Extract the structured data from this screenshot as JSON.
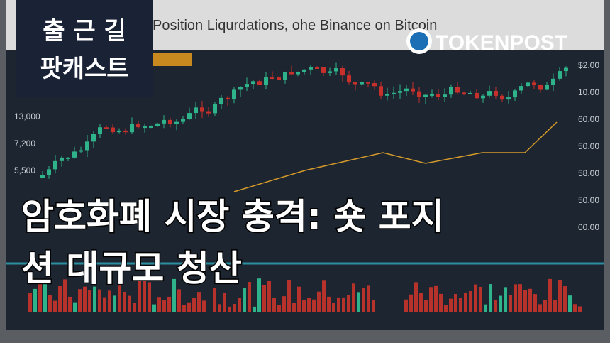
{
  "background": {
    "title": "Position Liqurdations, ohe Binance on Bitcoin",
    "left_axis": [
      "13,000",
      "7,200",
      "5,500"
    ],
    "right_axis": [
      "$2.00",
      "10.00",
      "60.00",
      "50.00",
      "58.00",
      "50.00",
      "00.00"
    ]
  },
  "badge": {
    "line1": "출 근 길",
    "line2": "팟캐스트"
  },
  "logo": {
    "text": "TOKENPOST"
  },
  "headline": {
    "line1": "암호화폐 시장 충격: 숏 포지",
    "line2": "션 대규모 청산"
  }
}
